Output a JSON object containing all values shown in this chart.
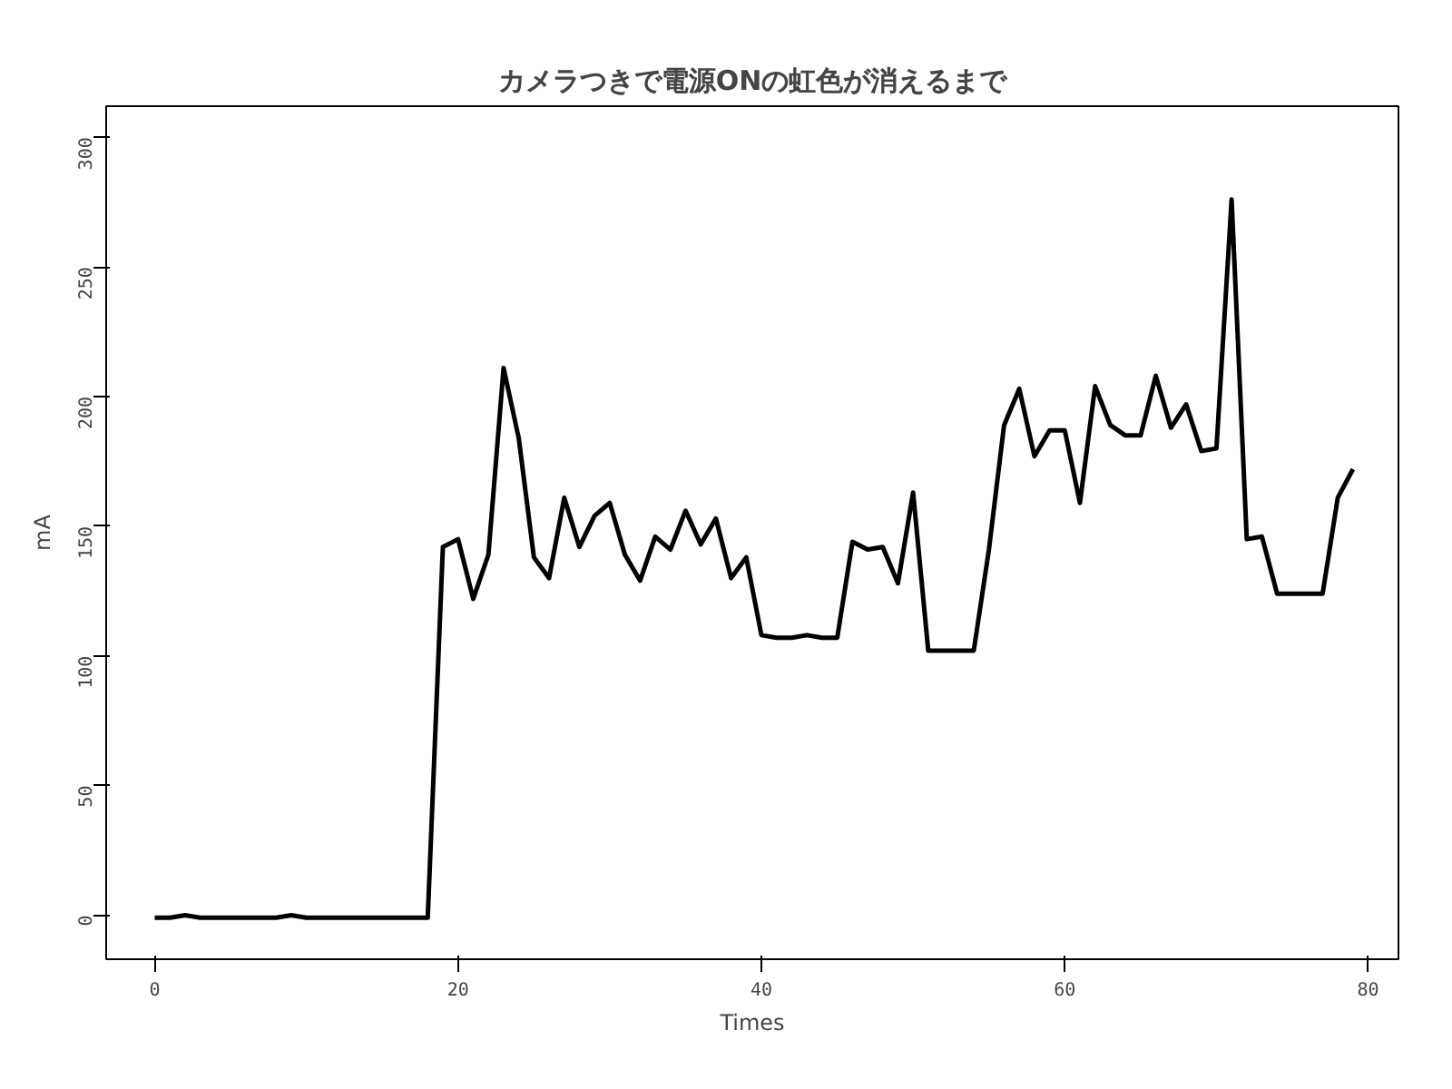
{
  "chart_data": {
    "type": "line",
    "title": "カメラつきで電源ONの虹色が消えるまで",
    "xlabel": "Times",
    "ylabel": "mA",
    "x": [
      0,
      1,
      2,
      3,
      4,
      5,
      6,
      7,
      8,
      9,
      10,
      11,
      12,
      13,
      14,
      15,
      16,
      17,
      18,
      19,
      20,
      21,
      22,
      23,
      24,
      25,
      26,
      27,
      28,
      29,
      30,
      31,
      32,
      33,
      34,
      35,
      36,
      37,
      38,
      39,
      40,
      41,
      42,
      43,
      44,
      45,
      46,
      47,
      48,
      49,
      50,
      51,
      52,
      53,
      54,
      55,
      56,
      57,
      58,
      59,
      60,
      61,
      62,
      63,
      64,
      65,
      66,
      67,
      68,
      69,
      70,
      71,
      72,
      73,
      74,
      75,
      76,
      77,
      78,
      79
    ],
    "series": [
      {
        "color": "#000000",
        "values": [
          -1,
          -1,
          0,
          -1,
          -1,
          -1,
          -1,
          -1,
          -1,
          0,
          -1,
          -1,
          -1,
          -1,
          -1,
          -1,
          -1,
          -1,
          -1,
          142,
          145,
          122,
          139,
          211,
          184,
          138,
          130,
          161,
          142,
          154,
          159,
          139,
          129,
          146,
          141,
          156,
          143,
          153,
          130,
          138,
          108,
          107,
          107,
          108,
          107,
          107,
          144,
          141,
          142,
          128,
          163,
          102,
          102,
          102,
          102,
          141,
          189,
          203,
          177,
          187,
          187,
          159,
          204,
          189,
          185,
          185,
          208,
          188,
          197,
          179,
          180,
          276,
          145,
          146,
          124,
          124,
          124,
          124,
          161,
          172
        ]
      }
    ],
    "xlim": [
      -3.2,
      82
    ],
    "ylim": [
      -17,
      312
    ],
    "xticks": [
      0,
      20,
      40,
      60,
      80
    ],
    "yticks": [
      0,
      50,
      100,
      150,
      200,
      250,
      300
    ],
    "grid": false,
    "marker": "none",
    "line_style": "solid"
  }
}
